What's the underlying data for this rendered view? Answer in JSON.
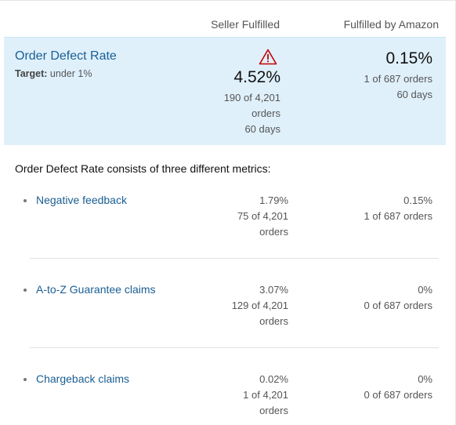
{
  "columns": {
    "seller": "Seller Fulfilled",
    "fba": "Fulfilled by Amazon"
  },
  "odr": {
    "title": "Order Defect Rate",
    "target_label": "Target:",
    "target_value": "under 1%",
    "seller": {
      "rate": "4.52%",
      "line1": "190 of 4,201",
      "line2": "orders",
      "line3": "60 days",
      "warning_icon": "warning-triangle-icon"
    },
    "fba": {
      "rate": "0.15%",
      "line1": "1 of 687 orders",
      "line2": "60 days"
    }
  },
  "intro": "Order Defect Rate consists of three different metrics:",
  "metrics": [
    {
      "name": "Negative feedback",
      "seller": {
        "rate": "1.79%",
        "count": "75 of 4,201",
        "unit": "orders"
      },
      "fba": {
        "rate": "0.15%",
        "count": "1 of 687 orders"
      }
    },
    {
      "name": "A-to-Z Guarantee claims",
      "seller": {
        "rate": "3.07%",
        "count": "129 of 4,201",
        "unit": "orders"
      },
      "fba": {
        "rate": "0%",
        "count": "0 of 687 orders"
      }
    },
    {
      "name": "Chargeback claims",
      "seller": {
        "rate": "0.02%",
        "count": "1 of 4,201",
        "unit": "orders"
      },
      "fba": {
        "rate": "0%",
        "count": "0 of 687 orders"
      }
    }
  ],
  "colors": {
    "link": "#1a5e93",
    "summary_bg": "#dff0fb",
    "warning": "#c40000"
  }
}
